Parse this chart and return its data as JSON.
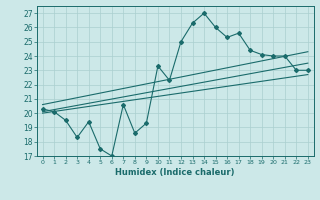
{
  "title": "",
  "xlabel": "Humidex (Indice chaleur)",
  "bg_color": "#cce8e8",
  "grid_color": "#aacfcf",
  "line_color": "#1a6b6b",
  "xlim": [
    -0.5,
    23.5
  ],
  "ylim": [
    17,
    27.5
  ],
  "x_ticks": [
    0,
    1,
    2,
    3,
    4,
    5,
    6,
    7,
    8,
    9,
    10,
    11,
    12,
    13,
    14,
    15,
    16,
    17,
    18,
    19,
    20,
    21,
    22,
    23
  ],
  "y_ticks": [
    17,
    18,
    19,
    20,
    21,
    22,
    23,
    24,
    25,
    26,
    27
  ],
  "data_x": [
    0,
    1,
    2,
    3,
    4,
    5,
    6,
    7,
    8,
    9,
    10,
    11,
    12,
    13,
    14,
    15,
    16,
    17,
    18,
    19,
    20,
    21,
    22,
    23
  ],
  "data_y": [
    20.3,
    20.1,
    19.5,
    18.3,
    19.4,
    17.5,
    17.0,
    20.6,
    18.6,
    19.3,
    23.3,
    22.3,
    25.0,
    26.3,
    27.0,
    26.0,
    25.3,
    25.6,
    24.4,
    24.1,
    24.0,
    24.0,
    23.0,
    23.0
  ],
  "line1_x": [
    0,
    23
  ],
  "line1_y": [
    20.1,
    23.5
  ],
  "line2_x": [
    0,
    23
  ],
  "line2_y": [
    20.6,
    24.3
  ],
  "line3_x": [
    0,
    23
  ],
  "line3_y": [
    20.0,
    22.7
  ]
}
